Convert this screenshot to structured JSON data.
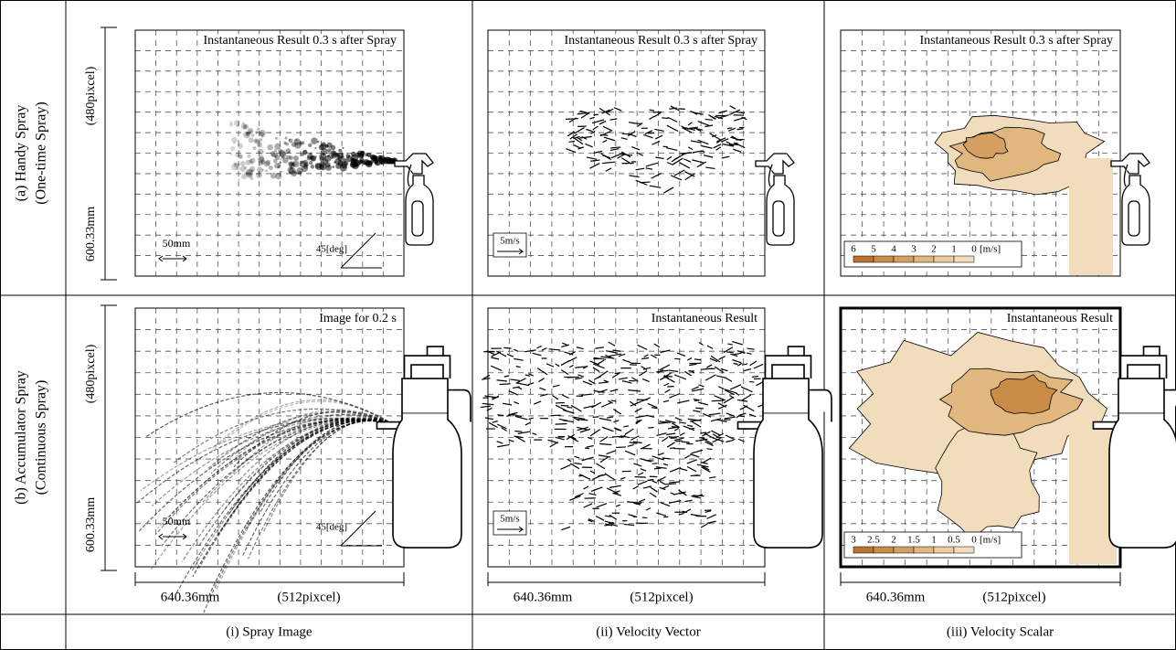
{
  "row_labels": [
    {
      "line1": "(a) Handy Spray",
      "line2": "(One-time Spray)"
    },
    {
      "line1": "(b) Accumulator Spray",
      "line2": "(Continuous Spray)"
    }
  ],
  "height_dimension": {
    "length": "600.33mm",
    "pixels": "(480pixcel)"
  },
  "width_dimension": {
    "length": "640.36mm",
    "pixels": "(512pixcel)"
  },
  "panels": [
    [
      {
        "title": "Instantaneous Result 0.3 s after Spray",
        "scale_bar": "50mm",
        "angle": "45[deg]"
      },
      {
        "title": "Instantaneous Result 0.3 s after Spray",
        "reference_vector": "5m/s"
      },
      {
        "title": "Instantaneous Result 0.3 s after Spray",
        "legend": {
          "levels": [
            6,
            5,
            4,
            3,
            2,
            1,
            0
          ],
          "unit": "[m/s]"
        }
      }
    ],
    [
      {
        "title": "Image for 0.2 s",
        "scale_bar": "50mm",
        "angle": "45[deg]"
      },
      {
        "title": "Instantaneous Result",
        "reference_vector": "5m/s"
      },
      {
        "title": "Instantaneous Result",
        "legend": {
          "levels": [
            3,
            2.5,
            2,
            1.5,
            1,
            0.5,
            0
          ],
          "unit": "[m/s]"
        }
      }
    ]
  ],
  "column_labels": [
    "(i) Spray Image",
    "(ii) Velocity Vector",
    "(iii) Velocity Scalar"
  ]
}
